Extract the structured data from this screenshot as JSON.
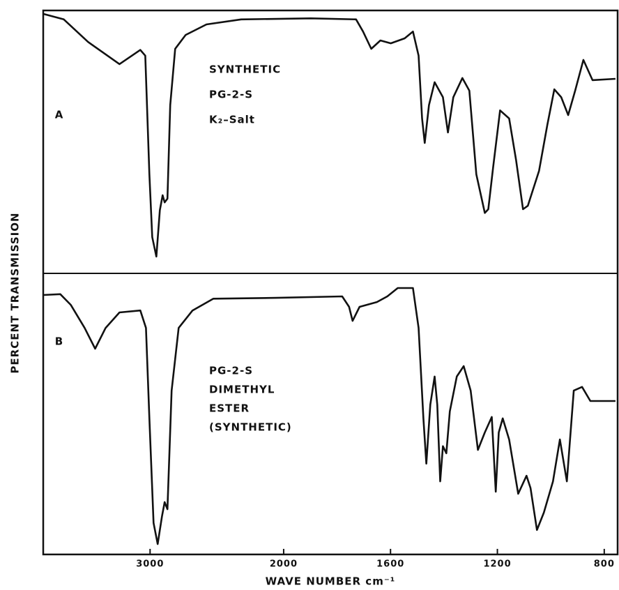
{
  "chart_data": [
    {
      "type": "line",
      "panel_label": "A",
      "annotations": [
        "SYNTHETIC",
        "PG-2-S",
        "K₂–Salt"
      ],
      "ylabel": "PERCENT TRANSMISSION",
      "xlim": [
        3800,
        750
      ],
      "xscale_break": 2000,
      "ylim": [
        0,
        100
      ],
      "x": [
        3800,
        3646,
        3464,
        3229,
        3073,
        3036,
        3005,
        2984,
        2953,
        2927,
        2906,
        2891,
        2870,
        2849,
        2812,
        2734,
        2578,
        2318,
        1898,
        1729,
        1703,
        1672,
        1638,
        1599,
        1547,
        1516,
        1495,
        1482,
        1472,
        1456,
        1435,
        1404,
        1385,
        1365,
        1331,
        1305,
        1279,
        1247,
        1234,
        1216,
        1190,
        1156,
        1130,
        1104,
        1086,
        1065,
        1044,
        1013,
        987,
        961,
        935,
        909,
        878,
        844,
        758
      ],
      "series": [
        {
          "color": "#111111",
          "values": [
            98.7,
            96.6,
            88,
            79.6,
            85,
            82.8,
            37.7,
            13.8,
            6.4,
            24,
            29.7,
            27,
            28.4,
            64,
            85.4,
            90.7,
            94.7,
            96.6,
            97,
            96.6,
            92,
            85.4,
            88.6,
            87.5,
            89.4,
            92,
            82.8,
            58.9,
            49.6,
            64,
            72.7,
            67,
            53.6,
            67,
            74.3,
            69.5,
            37.7,
            23,
            24.4,
            40.3,
            62,
            58.9,
            43,
            24.4,
            25.7,
            32.4,
            39,
            56.5,
            70,
            67,
            60.2,
            69.5,
            81.2,
            73.5,
            74
          ]
        }
      ]
    },
    {
      "type": "line",
      "panel_label": "B",
      "annotations": [
        "PG-2-S",
        "DIMETHYL",
        "ESTER",
        "(SYNTHETIC)"
      ],
      "xlabel": "WAVE NUMBER cm⁻¹",
      "xlim": [
        3800,
        750
      ],
      "xscale_break": 2000,
      "ylim": [
        0,
        100
      ],
      "xticks": [
        3000,
        2000,
        1600,
        1200,
        800
      ],
      "x": [
        3800,
        3672,
        3594,
        3490,
        3411,
        3333,
        3229,
        3073,
        3031,
        3005,
        2974,
        2943,
        2911,
        2891,
        2870,
        2839,
        2786,
        2682,
        2526,
        2057,
        1781,
        1755,
        1742,
        1716,
        1651,
        1612,
        1573,
        1516,
        1495,
        1477,
        1466,
        1451,
        1435,
        1425,
        1414,
        1404,
        1391,
        1378,
        1352,
        1326,
        1300,
        1273,
        1247,
        1221,
        1206,
        1195,
        1180,
        1156,
        1122,
        1091,
        1076,
        1052,
        1026,
        992,
        966,
        940,
        914,
        883,
        852,
        758
      ],
      "series": [
        {
          "color": "#111111",
          "values": [
            92.3,
            92.6,
            88.8,
            80.6,
            73.2,
            80.6,
            86.1,
            86.8,
            80.6,
            48.4,
            11.2,
            3.7,
            13.6,
            18.6,
            16.1,
            58.3,
            80.6,
            86.8,
            91,
            91.3,
            91.8,
            88.1,
            83.1,
            88.1,
            89.8,
            91.8,
            94.8,
            94.8,
            80.6,
            48.4,
            32.3,
            53.3,
            63.3,
            53.3,
            26,
            38.5,
            36,
            50.9,
            63.3,
            67,
            58.3,
            37.2,
            43.4,
            48.9,
            22.3,
            43.4,
            48.4,
            40.9,
            21.6,
            28,
            23.6,
            8.7,
            14.9,
            26,
            40.9,
            26,
            58.3,
            59.6,
            54.6,
            54.6
          ]
        }
      ]
    }
  ]
}
